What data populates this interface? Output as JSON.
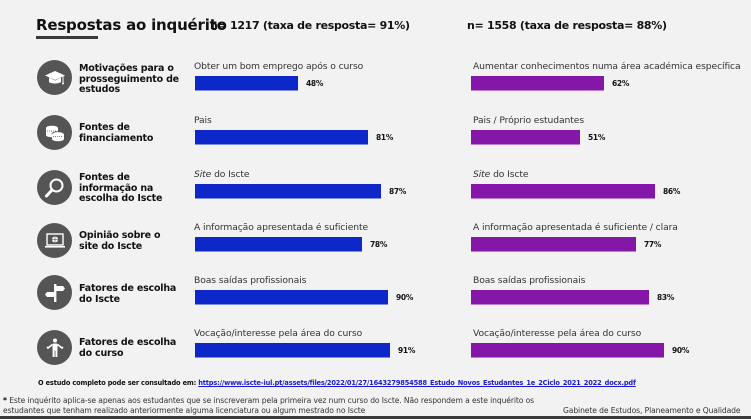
{
  "header": {
    "title": "Respostas ao inquérito",
    "n_left": "n= 1217 (taxa de resposta= 91%)",
    "n_right": "n= 1558 (taxa de resposta= 88%)"
  },
  "colors": {
    "left_series": "#0d27c9",
    "right_series": "#8517a8",
    "icon_bg": "#555555"
  },
  "rows": [
    {
      "icon": "graduation-cap-icon",
      "category": "Motivações para o prosseguimento de estudos",
      "left": {
        "label": "Obter um bom emprego após o curso",
        "value": 48,
        "pct_text": "48%"
      },
      "right": {
        "label": "Aumentar conhecimentos numa área académica específica",
        "value": 62,
        "pct_text": "62%"
      }
    },
    {
      "icon": "coins-icon",
      "category": "Fontes de financiamento",
      "left": {
        "label": "Pais",
        "value": 81,
        "pct_text": "81%"
      },
      "right": {
        "label": "Pais / Próprio estudantes",
        "value": 51,
        "pct_text": "51%"
      }
    },
    {
      "icon": "magnifier-icon",
      "category": "Fontes de informação na escolha do Iscte",
      "left": {
        "label_em": "Site",
        "label": " do Iscte",
        "value": 87,
        "pct_text": "87%"
      },
      "right": {
        "label_em": "Site",
        "label": " do Iscte",
        "value": 86,
        "pct_text": "86%"
      }
    },
    {
      "icon": "laptop-globe-icon",
      "category": "Opinião sobre o site do Iscte",
      "left": {
        "label": "A informação apresentada é suficiente",
        "value": 78,
        "pct_text": "78%"
      },
      "right": {
        "label": "A informação apresentada é suficiente / clara",
        "value": 77,
        "pct_text": "77%"
      }
    },
    {
      "icon": "signpost-icon",
      "category": "Fatores de escolha do Iscte",
      "left": {
        "label": "Boas saídas profissionais",
        "value": 90,
        "pct_text": "90%"
      },
      "right": {
        "label": "Boas saídas profissionais",
        "value": 83,
        "pct_text": "83%"
      }
    },
    {
      "icon": "person-shrug-icon",
      "category": "Fatores de escolha do curso",
      "left": {
        "label": "Vocação/interesse pela área do curso",
        "value": 91,
        "pct_text": "91%"
      },
      "right": {
        "label": "Vocação/interesse pela área do curso",
        "value": 90,
        "pct_text": "90%"
      }
    }
  ],
  "footer": {
    "link_prefix": "O estudo completo pode ser consultado em: ",
    "link_text": "https://www.iscte-iul.pt/assets/files/2022/01/27/1643279854588_Estudo_Novos_Estudantes_1e_2Ciclo_2021_2022_docx.pdf",
    "note_star": "*",
    "note": " Este inquérito aplica-se apenas  aos estudantes que se inscreveram pela primeira vez num curso do Iscte. Não respondem a este inquérito os estudantes que tenham realizado anteriormente alguma licenciatura ou algum mestrado no Iscte",
    "organization": "Gabinete de Estudos, Planeamento e Qualidade"
  }
}
